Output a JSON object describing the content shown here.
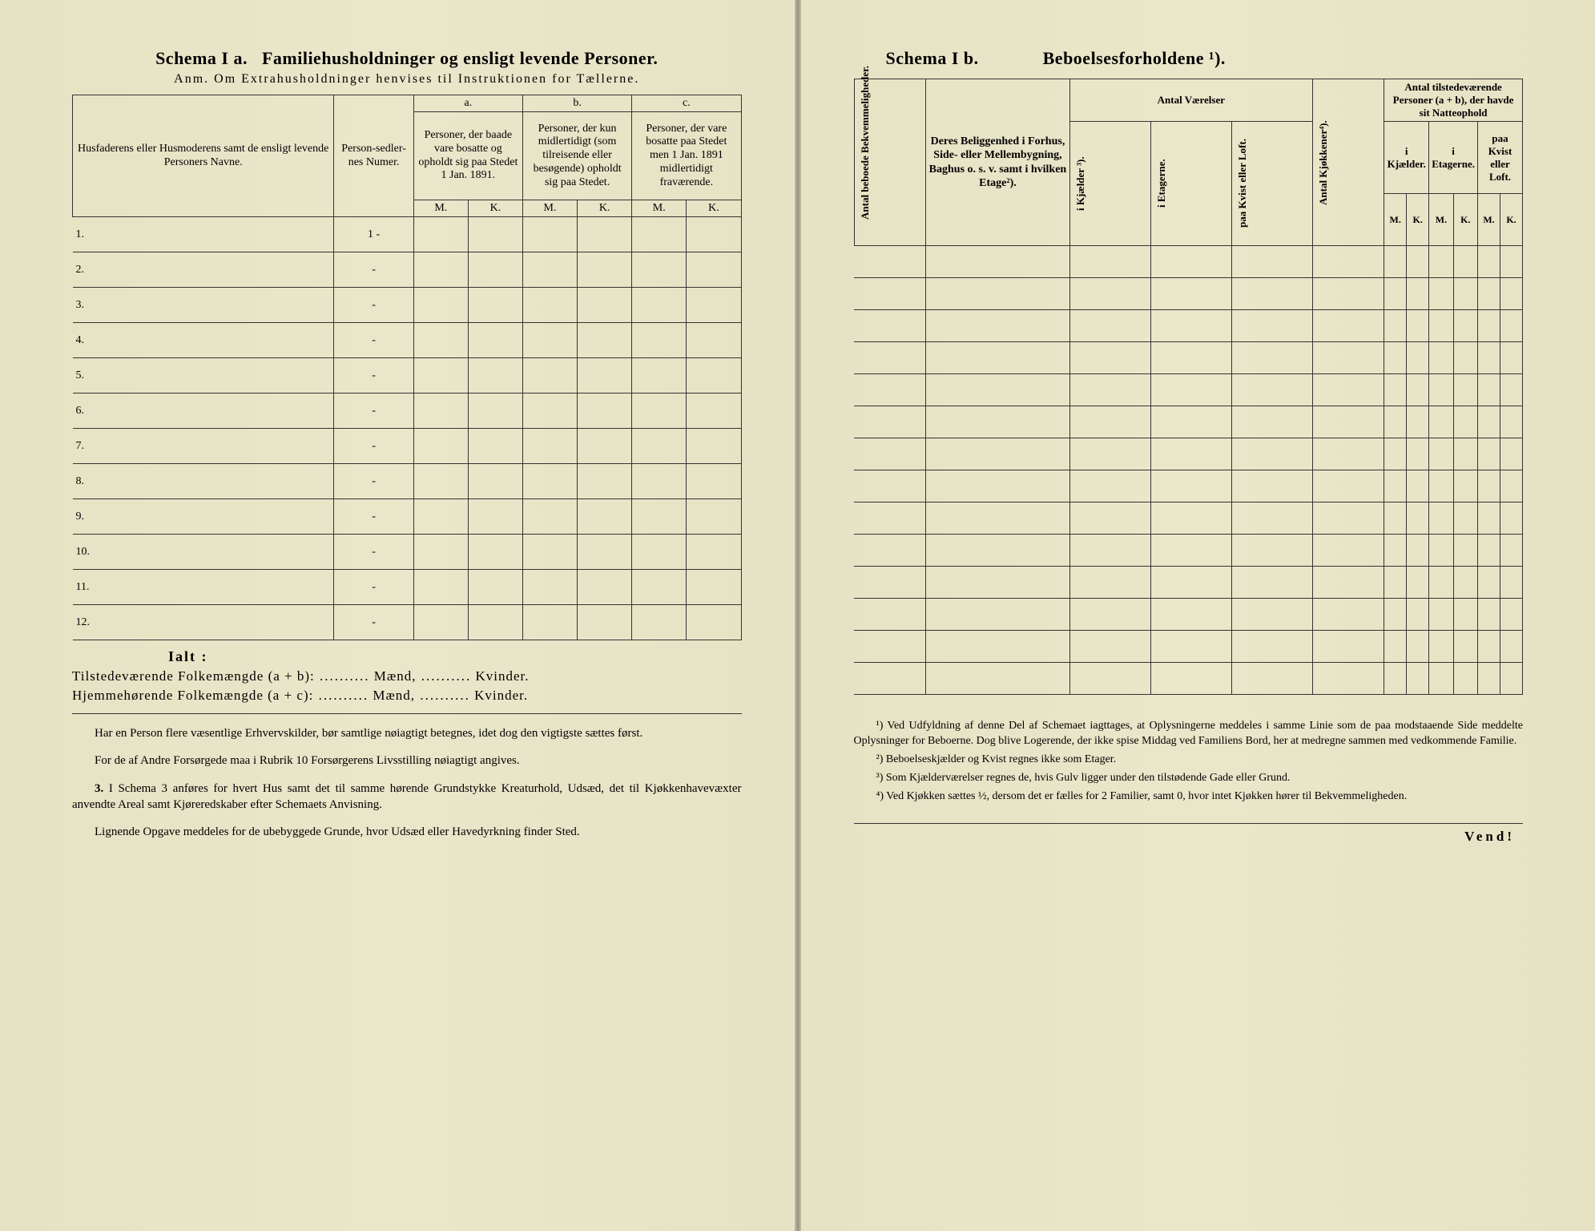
{
  "left": {
    "schema_label": "Schema I a.",
    "schema_title": "Familiehusholdninger og ensligt levende Personer.",
    "anm": "Anm. Om Extrahusholdninger henvises til Instruktionen for Tællerne.",
    "headers": {
      "names": "Husfaderens eller Husmoderens samt de ensligt levende Personers Navne.",
      "numer": "Person-sedler-nes Numer.",
      "a_label": "a.",
      "a_text": "Personer, der baade vare bosatte og opholdt sig paa Stedet 1 Jan. 1891.",
      "b_label": "b.",
      "b_text": "Personer, der kun midlertidigt (som tilreisende eller besøgende) opholdt sig paa Stedet.",
      "c_label": "c.",
      "c_text": "Personer, der vare bosatte paa Stedet men 1 Jan. 1891 midlertidigt fraværende.",
      "M": "M.",
      "K": "K."
    },
    "rows": [
      {
        "n": "1.",
        "num": "1 -"
      },
      {
        "n": "2.",
        "num": "-"
      },
      {
        "n": "3.",
        "num": "-"
      },
      {
        "n": "4.",
        "num": "-"
      },
      {
        "n": "5.",
        "num": "-"
      },
      {
        "n": "6.",
        "num": "-"
      },
      {
        "n": "7.",
        "num": "-"
      },
      {
        "n": "8.",
        "num": "-"
      },
      {
        "n": "9.",
        "num": "-"
      },
      {
        "n": "10.",
        "num": "-"
      },
      {
        "n": "11.",
        "num": "-"
      },
      {
        "n": "12.",
        "num": "-"
      }
    ],
    "ialt": "Ialt :",
    "sum1_label": "Tilstedeværende Folkemængde (a + b):",
    "sum2_label": "Hjemmehørende Folkemængde (a + c):",
    "maend": "Mænd,",
    "kvinder": "Kvinder.",
    "para1": "Har en Person flere væsentlige Erhvervskilder, bør samtlige nøiagtigt betegnes, idet dog den vigtigste sættes først.",
    "para2": "For de af Andre Forsørgede maa i Rubrik 10 Forsørgerens Livsstilling nøiagtigt angives.",
    "para3_num": "3.",
    "para3": "I Schema 3 anføres for hvert Hus samt det til samme hørende Grundstykke Kreaturhold, Udsæd, det til Kjøkkenhavevæxter anvendte Areal samt Kjøreredskaber efter Schemaets Anvisning.",
    "para4": "Lignende Opgave meddeles for de ubebyggede Grunde, hvor Udsæd eller Havedyrkning finder Sted."
  },
  "right": {
    "schema_label": "Schema I b.",
    "schema_title": "Beboelsesforholdene ¹).",
    "headers": {
      "antal_beboede": "Antal beboede Bekvemmeligheder.",
      "beliggenhed": "Deres Beliggenhed i Forhus, Side- eller Mellembygning, Baghus o. s. v. samt i hvilken Etage²).",
      "antal_vaerelser": "Antal Værelser",
      "i_kjaelder": "i Kjælder ³).",
      "i_etagerne": "i Etagerne.",
      "paa_kvist": "paa Kvist eller Loft.",
      "antal_kjokkener": "Antal Kjøkkener⁴).",
      "til_personer": "Antal tilstedeværende Personer (a + b), der havde sit Natteophold",
      "i_kjael_der": "i Kjælder.",
      "i_etagerne2": "i Etagerne.",
      "paa_kvist2": "paa Kvist eller Loft.",
      "M": "M.",
      "K": "K."
    },
    "row_count": 14,
    "footnotes": {
      "f1": "¹) Ved Udfyldning af denne Del af Schemaet iagttages, at Oplysningerne meddeles i samme Linie som de paa modstaaende Side meddelte Oplysninger for Beboerne. Dog blive Logerende, der ikke spise Middag ved Familiens Bord, her at medregne sammen med vedkommende Familie.",
      "f2": "²) Beboelseskjælder og Kvist regnes ikke som Etager.",
      "f3": "³) Som Kjælderværelser regnes de, hvis Gulv ligger under den tilstødende Gade eller Grund.",
      "f4": "⁴) Ved Kjøkken sættes ½, dersom det er fælles for 2 Familier, samt 0, hvor intet Kjøkken hører til Bekvemmeligheden."
    },
    "vend": "Vend!"
  },
  "colors": {
    "paper": "#e8e4c8",
    "ink": "#222222",
    "rule": "#333333"
  }
}
